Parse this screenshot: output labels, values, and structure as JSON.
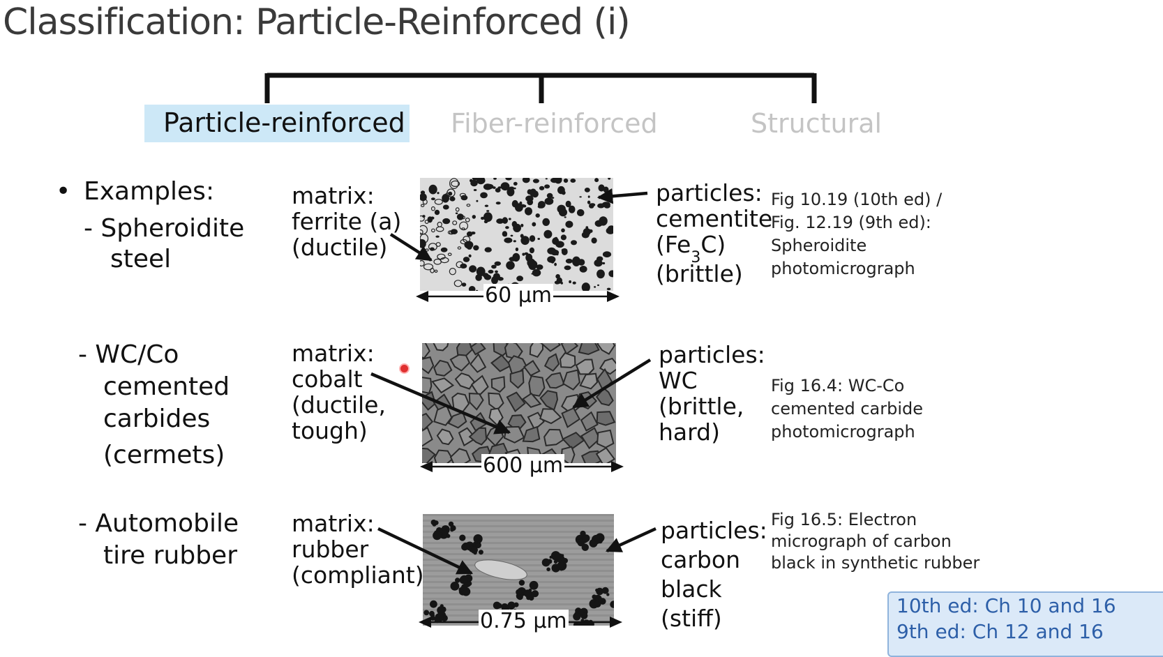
{
  "slide": {
    "title": "Classification: Particle-Reinforced (i)",
    "branches": [
      "Particle-reinforced",
      "Fiber-reinforced",
      "Structural"
    ],
    "bullet_label": "Examples:"
  },
  "examples": [
    {
      "name_lines": [
        "- Spheroidite",
        "steel"
      ],
      "matrix_lines": [
        "matrix:",
        "ferrite (a)",
        "(ductile)"
      ],
      "particles_lines": [
        "particles:",
        "cementite",
        "(Fe",
        "3",
        "C)",
        "(brittle)"
      ],
      "scale": "60 μm",
      "caption_lines": [
        "Fig 10.19 (10th ed) /",
        "Fig. 12.19 (9th ed):",
        "Spheroidite",
        "photomicrograph"
      ]
    },
    {
      "name_lines": [
        "- WC/Co",
        "cemented",
        "carbides",
        "(cermets)"
      ],
      "matrix_lines": [
        "matrix:",
        "cobalt",
        "(ductile,",
        "tough)"
      ],
      "particles_lines": [
        "particles:",
        "WC",
        "(brittle,",
        "hard)"
      ],
      "scale": "600 μm",
      "caption_lines": [
        "Fig 16.4: WC-Co",
        "cemented carbide",
        "photomicrograph"
      ]
    },
    {
      "name_lines": [
        "- Automobile",
        "tire rubber"
      ],
      "matrix_lines": [
        "matrix:",
        "rubber",
        "(compliant)"
      ],
      "particles_lines": [
        "particles:",
        "carbon",
        "black",
        "(stiff)"
      ],
      "scale": "0.75 μm",
      "caption_lines": [
        "Fig 16.5: Electron",
        "micrograph of carbon",
        "black in synthetic rubber"
      ]
    }
  ],
  "chapter_note": [
    "10th ed: Ch 10 and 16",
    "9th ed: Ch 12 and 16"
  ],
  "colors": {
    "title_text": "#3a3a3a",
    "active_branch_bg": "#cde8f7",
    "inactive_branch_text": "#c4c4c4",
    "chapter_box_bg": "#dbe9f8",
    "chapter_box_text": "#2d5fa8",
    "cursor_marker": "#e03030"
  }
}
